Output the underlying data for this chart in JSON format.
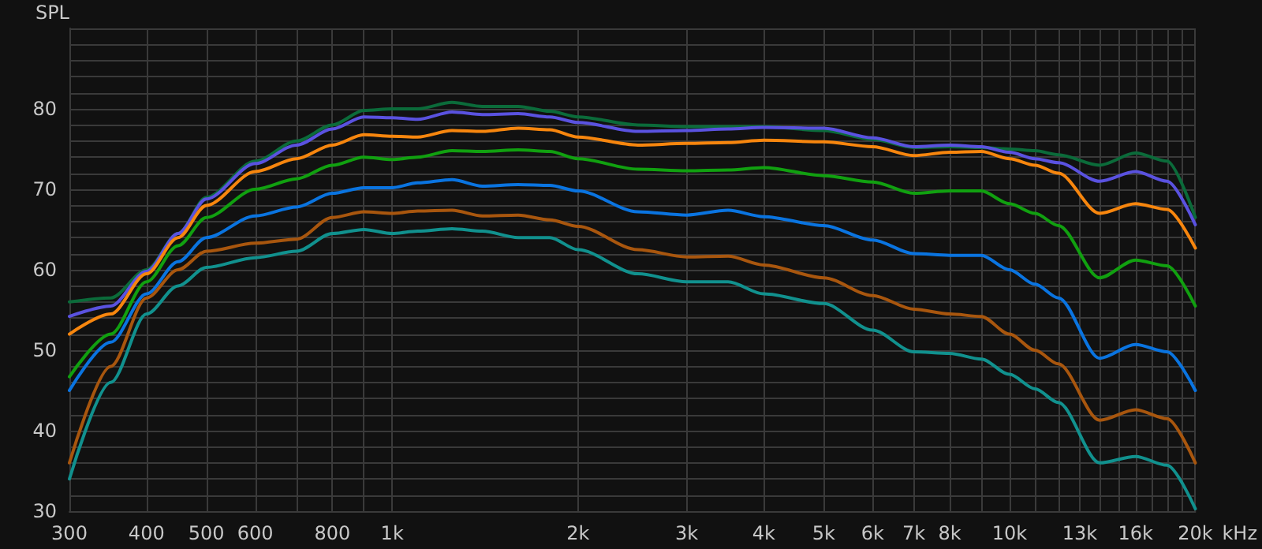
{
  "chart_data": {
    "type": "line",
    "ylabel": "SPL",
    "x": [
      300,
      350,
      400,
      450,
      500,
      600,
      700,
      800,
      900,
      1000,
      1100,
      1250,
      1400,
      1600,
      1800,
      2000,
      2500,
      3000,
      3500,
      4000,
      5000,
      6000,
      7000,
      8000,
      9000,
      10000,
      11000,
      12000,
      14000,
      16000,
      18000,
      20000
    ],
    "series": [
      {
        "color": "#0b6b3a",
        "values": [
          56,
          56.5,
          60,
          64.5,
          69,
          73.5,
          76,
          78,
          79.8,
          80,
          80,
          80.8,
          80.3,
          80.3,
          79.7,
          79,
          78,
          77.8,
          77.8,
          77.8,
          77.3,
          76.2,
          75.2,
          75.3,
          75.2,
          75,
          74.8,
          74.3,
          73,
          74.5,
          73.5,
          66.5
        ]
      },
      {
        "color": "#5a52e0",
        "values": [
          54.2,
          55.5,
          59.8,
          64.5,
          68.8,
          73.2,
          75.5,
          77.5,
          79,
          78.9,
          78.7,
          79.6,
          79.3,
          79.4,
          79,
          78.3,
          77.2,
          77.3,
          77.5,
          77.7,
          77.6,
          76.4,
          75.3,
          75.5,
          75.3,
          74.6,
          73.8,
          73.3,
          71,
          72.2,
          71,
          65.6
        ]
      },
      {
        "color": "#f7860e",
        "values": [
          52,
          54.5,
          59.5,
          64,
          68,
          72.2,
          73.8,
          75.5,
          76.8,
          76.6,
          76.5,
          77.3,
          77.2,
          77.6,
          77.4,
          76.5,
          75.5,
          75.7,
          75.8,
          76.1,
          75.9,
          75.3,
          74.2,
          74.6,
          74.7,
          73.8,
          73,
          72,
          67,
          68.2,
          67.5,
          62.7
        ]
      },
      {
        "color": "#11a010",
        "values": [
          46.7,
          52,
          58.5,
          63,
          66.5,
          70,
          71.3,
          73,
          74,
          73.7,
          74,
          74.8,
          74.7,
          74.9,
          74.7,
          73.8,
          72.5,
          72.3,
          72.4,
          72.7,
          71.7,
          70.9,
          69.5,
          69.8,
          69.8,
          68.2,
          67,
          65.5,
          59,
          61.2,
          60.5,
          55.5
        ]
      },
      {
        "color": "#0a74e0",
        "values": [
          45,
          51,
          57,
          61,
          64,
          66.7,
          67.8,
          69.5,
          70.2,
          70.2,
          70.8,
          71.2,
          70.4,
          70.6,
          70.5,
          69.8,
          67.2,
          66.8,
          67.4,
          66.6,
          65.5,
          63.7,
          62,
          61.8,
          61.8,
          60,
          58.2,
          56.5,
          49,
          50.7,
          49.8,
          45
        ]
      },
      {
        "color": "#a8560e",
        "values": [
          36,
          48,
          56.5,
          60,
          62.3,
          63.3,
          63.8,
          66.5,
          67.2,
          67,
          67.3,
          67.4,
          66.7,
          66.8,
          66.2,
          65.4,
          62.5,
          61.6,
          61.7,
          60.6,
          59,
          56.8,
          55.1,
          54.5,
          54.2,
          52,
          50,
          48.3,
          41.3,
          42.6,
          41.5,
          36
        ]
      },
      {
        "color": "#11918e",
        "values": [
          34,
          46,
          54.5,
          58,
          60.3,
          61.5,
          62.3,
          64.5,
          65,
          64.5,
          64.8,
          65.1,
          64.8,
          64,
          64,
          62.5,
          59.5,
          58.5,
          58.5,
          57,
          55.8,
          52.5,
          49.8,
          49.6,
          48.9,
          47,
          45.2,
          43.5,
          36,
          36.8,
          35.7,
          30.3
        ]
      }
    ],
    "log": "x",
    "xlim": [
      300,
      20000
    ],
    "ylim": [
      30,
      90
    ],
    "xticks": [
      300,
      400,
      500,
      600,
      {
        "value": 700,
        "label": null
      },
      800,
      {
        "value": 900,
        "label": null
      },
      {
        "value": 1000,
        "label": "1k"
      },
      {
        "value": 2000,
        "label": "2k"
      },
      {
        "value": 3000,
        "label": "3k"
      },
      {
        "value": 4000,
        "label": "4k"
      },
      {
        "value": 5000,
        "label": "5k"
      },
      {
        "value": 6000,
        "label": "6k"
      },
      {
        "value": 7000,
        "label": "7k"
      },
      {
        "value": 8000,
        "label": "8k"
      },
      {
        "value": 9000,
        "label": null
      },
      {
        "value": 10000,
        "label": "10k"
      },
      {
        "value": 11000,
        "label": null
      },
      {
        "value": 12000,
        "label": null
      },
      {
        "value": 13000,
        "label": "13k"
      },
      {
        "value": 14000,
        "label": null
      },
      {
        "value": 15000,
        "label": null
      },
      {
        "value": 16000,
        "label": "16k"
      },
      {
        "value": 17000,
        "label": null
      },
      {
        "value": 18000,
        "label": null
      },
      {
        "value": 19000,
        "label": null
      },
      {
        "value": 20000,
        "label": "20k"
      }
    ],
    "xlabel": "kHz",
    "yticks": [
      30,
      {
        "value": 32,
        "label": null
      },
      {
        "value": 34,
        "label": null
      },
      {
        "value": 36,
        "label": null
      },
      {
        "value": 38,
        "label": null
      },
      40,
      {
        "value": 42,
        "label": null
      },
      {
        "value": 44,
        "label": null
      },
      {
        "value": 46,
        "label": null
      },
      {
        "value": 48,
        "label": null
      },
      50,
      {
        "value": 52,
        "label": null
      },
      {
        "value": 54,
        "label": null
      },
      {
        "value": 56,
        "label": null
      },
      {
        "value": 58,
        "label": null
      },
      60,
      {
        "value": 62,
        "label": null
      },
      {
        "value": 64,
        "label": null
      },
      {
        "value": 66,
        "label": null
      },
      {
        "value": 68,
        "label": null
      },
      70,
      {
        "value": 72,
        "label": null
      },
      {
        "value": 74,
        "label": null
      },
      {
        "value": 76,
        "label": null
      },
      {
        "value": 78,
        "label": null
      },
      80,
      {
        "value": 82,
        "label": null
      },
      {
        "value": 84,
        "label": null
      },
      {
        "value": 86,
        "label": null
      },
      {
        "value": 88,
        "label": null
      },
      {
        "value": 90,
        "label": null
      }
    ],
    "grid": true,
    "marker": "none",
    "line_style": "solid"
  }
}
